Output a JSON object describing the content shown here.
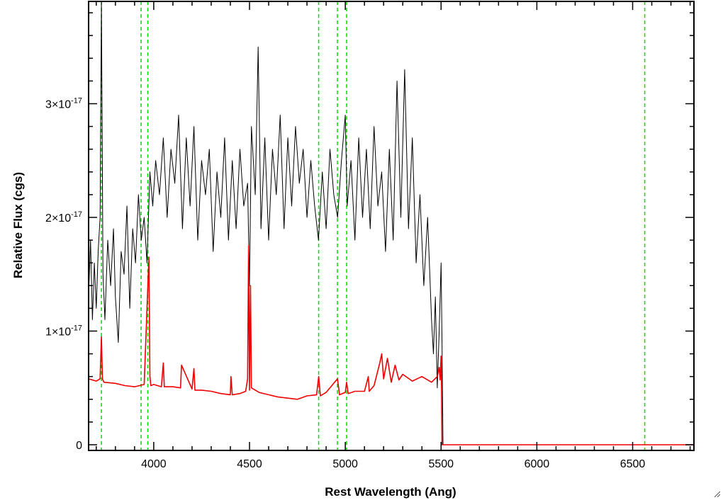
{
  "chart_data": {
    "type": "line",
    "title": "",
    "xlabel": "Rest Wavelength (Ang)",
    "ylabel": "Relative Flux (cgs)",
    "xlim": [
      3660,
      6820
    ],
    "ylim": [
      -0.05,
      3.9
    ],
    "y_multiplier_exponent": -17,
    "grid": false,
    "legend": "none",
    "x_ticks": [
      {
        "value": 4000,
        "label": "4000"
      },
      {
        "value": 4500,
        "label": "4500"
      },
      {
        "value": 5000,
        "label": "5000"
      },
      {
        "value": 5500,
        "label": "5500"
      },
      {
        "value": 6000,
        "label": "6000"
      },
      {
        "value": 6500,
        "label": "6500"
      }
    ],
    "x_minor_step": 100,
    "y_ticks": [
      {
        "value": 0,
        "mantissa": "0",
        "exponent": ""
      },
      {
        "value": 1,
        "mantissa": "1×10",
        "exponent": "-17"
      },
      {
        "value": 2,
        "mantissa": "2×10",
        "exponent": "-17"
      },
      {
        "value": 3,
        "mantissa": "3×10",
        "exponent": "-17"
      }
    ],
    "y_minor_step": 0.2,
    "vertical_lines": [
      {
        "x": 3727,
        "color": "#00dd00",
        "style": "dashed"
      },
      {
        "x": 3934,
        "color": "#00dd00",
        "style": "dashed"
      },
      {
        "x": 3969,
        "color": "#00dd00",
        "style": "dashed"
      },
      {
        "x": 4861,
        "color": "#00dd00",
        "style": "dashed"
      },
      {
        "x": 4959,
        "color": "#00dd00",
        "style": "dashed"
      },
      {
        "x": 5007,
        "color": "#00dd00",
        "style": "dashed"
      },
      {
        "x": 6563,
        "color": "#00dd00",
        "style": "dashed"
      }
    ],
    "series": [
      {
        "key": "flux",
        "color": "#000000",
        "x": [
          3660,
          3670,
          3680,
          3690,
          3700,
          3710,
          3720,
          3727,
          3735,
          3745,
          3760,
          3775,
          3790,
          3800,
          3815,
          3830,
          3845,
          3860,
          3875,
          3890,
          3905,
          3920,
          3935,
          3950,
          3965,
          3980,
          3995,
          4010,
          4030,
          4050,
          4070,
          4090,
          4110,
          4130,
          4150,
          4170,
          4190,
          4210,
          4230,
          4250,
          4270,
          4290,
          4310,
          4330,
          4350,
          4370,
          4390,
          4410,
          4430,
          4450,
          4470,
          4490,
          4500,
          4510,
          4530,
          4545,
          4560,
          4580,
          4600,
          4620,
          4640,
          4660,
          4680,
          4700,
          4720,
          4740,
          4760,
          4780,
          4800,
          4820,
          4840,
          4860,
          4880,
          4900,
          4920,
          4940,
          4960,
          4980,
          5000,
          5010,
          5030,
          5050,
          5070,
          5090,
          5110,
          5130,
          5150,
          5170,
          5190,
          5210,
          5230,
          5250,
          5270,
          5290,
          5310,
          5330,
          5350,
          5370,
          5390,
          5410,
          5430,
          5450,
          5460,
          5470,
          5480,
          5490,
          5500,
          5505,
          5510
        ],
        "y": [
          1.3,
          1.8,
          1.1,
          1.6,
          1.2,
          1.7,
          2.0,
          3.9,
          1.5,
          1.1,
          1.8,
          1.4,
          1.9,
          1.3,
          0.9,
          1.7,
          1.5,
          2.1,
          1.2,
          1.9,
          1.6,
          2.2,
          1.8,
          2.0,
          1.6,
          2.4,
          2.1,
          2.5,
          2.2,
          2.7,
          2.0,
          2.6,
          2.3,
          2.9,
          1.9,
          2.7,
          2.1,
          2.8,
          1.8,
          2.5,
          2.2,
          2.6,
          1.7,
          2.4,
          2.0,
          2.7,
          1.8,
          2.5,
          1.9,
          2.6,
          2.1,
          2.3,
          1.4,
          2.8,
          2.2,
          3.5,
          1.9,
          2.7,
          1.8,
          2.6,
          2.2,
          2.9,
          1.9,
          2.7,
          2.1,
          2.8,
          2.3,
          2.6,
          2.0,
          2.5,
          2.1,
          1.8,
          2.4,
          1.9,
          2.6,
          2.2,
          2.0,
          2.5,
          2.9,
          2.1,
          2.5,
          1.8,
          2.7,
          2.0,
          2.6,
          1.9,
          2.8,
          2.1,
          2.4,
          1.7,
          2.6,
          1.8,
          3.2,
          2.0,
          3.3,
          1.9,
          2.7,
          1.6,
          2.2,
          1.4,
          2.0,
          1.1,
          0.8,
          1.3,
          0.5,
          1.0,
          1.6,
          0.9,
          0.0
        ]
      },
      {
        "key": "model",
        "color": "#ee0000",
        "x": [
          3660,
          3700,
          3720,
          3727,
          3732,
          3740,
          3800,
          3850,
          3900,
          3950,
          3975,
          3980,
          3985,
          4000,
          4040,
          4050,
          4055,
          4100,
          4140,
          4145,
          4200,
          4210,
          4215,
          4250,
          4300,
          4350,
          4400,
          4403,
          4410,
          4450,
          4480,
          4490,
          4495,
          4500,
          4505,
          4510,
          4550,
          4600,
          4650,
          4700,
          4750,
          4800,
          4850,
          4861,
          4870,
          4900,
          4959,
          4970,
          5000,
          5007,
          5015,
          5050,
          5100,
          5120,
          5125,
          5150,
          5180,
          5190,
          5200,
          5220,
          5240,
          5260,
          5280,
          5300,
          5350,
          5400,
          5450,
          5480,
          5490,
          5495,
          5500,
          5502,
          5505,
          5510,
          5600,
          6000,
          6500,
          6820
        ],
        "y": [
          0.58,
          0.56,
          0.58,
          0.95,
          0.58,
          0.55,
          0.54,
          0.52,
          0.51,
          0.53,
          1.65,
          0.6,
          0.52,
          0.53,
          0.51,
          0.72,
          0.51,
          0.51,
          0.5,
          0.7,
          0.49,
          0.67,
          0.48,
          0.48,
          0.47,
          0.45,
          0.44,
          0.6,
          0.44,
          0.45,
          0.47,
          0.58,
          1.75,
          0.48,
          1.4,
          0.5,
          0.46,
          0.44,
          0.42,
          0.41,
          0.4,
          0.43,
          0.44,
          0.6,
          0.43,
          0.46,
          0.58,
          0.44,
          0.46,
          0.55,
          0.45,
          0.47,
          0.47,
          0.6,
          0.47,
          0.52,
          0.72,
          0.8,
          0.58,
          0.76,
          0.55,
          0.7,
          0.57,
          0.62,
          0.56,
          0.6,
          0.55,
          0.6,
          0.68,
          0.57,
          0.78,
          0.56,
          0.0,
          0.0,
          0.0,
          0.0,
          0.0,
          0.0
        ]
      }
    ]
  }
}
